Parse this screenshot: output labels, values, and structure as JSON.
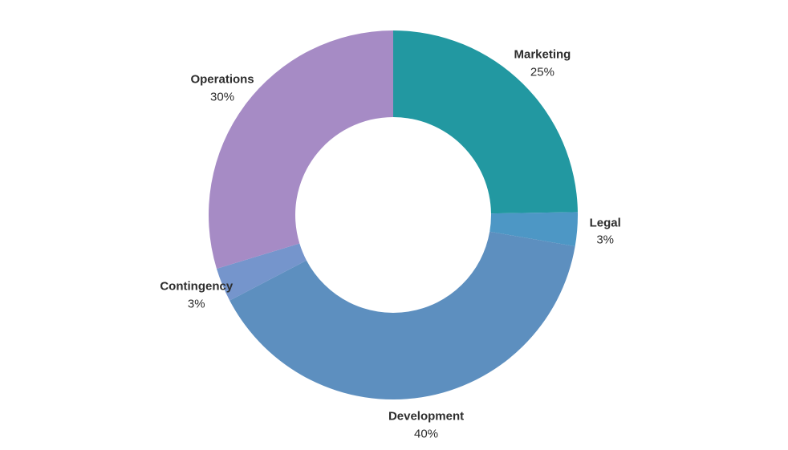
{
  "chart_data": {
    "type": "pie",
    "subtype": "donut",
    "title": "",
    "labels": [
      "Marketing",
      "Legal",
      "Development",
      "Contingency",
      "Operations"
    ],
    "values": [
      25,
      3,
      40,
      3,
      30
    ],
    "value_labels": [
      "25%",
      "3%",
      "40%",
      "3%",
      "30%"
    ],
    "colors": [
      "#2298a1",
      "#4d97c5",
      "#5d8fbf",
      "#7595cc",
      "#a68bc5"
    ],
    "start_angle_deg": 0,
    "direction": "clockwise",
    "legend_position": "outside-labels",
    "background_color": "#ffffff",
    "label_color": "#2d2d2d",
    "hole_color": "#ffffff"
  }
}
